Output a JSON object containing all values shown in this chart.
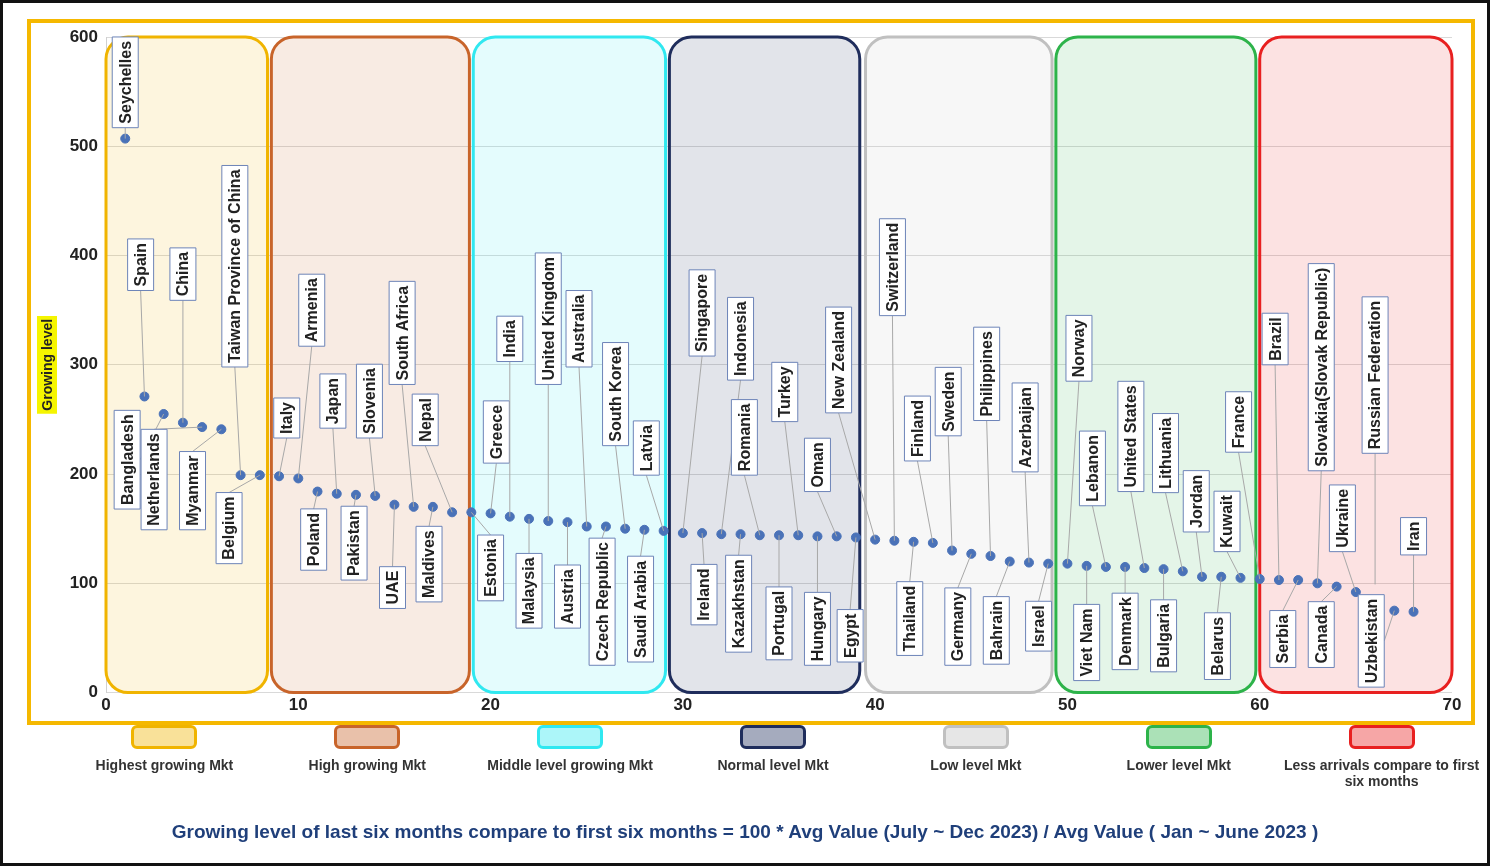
{
  "chart_data": {
    "type": "scatter",
    "ylabel": "Growing level",
    "x": [
      1,
      2,
      3,
      4,
      5,
      6,
      7,
      8,
      9,
      10,
      11,
      12,
      13,
      14,
      15,
      16,
      17,
      18,
      19,
      20,
      21,
      22,
      23,
      24,
      25,
      26,
      27,
      28,
      29,
      30,
      31,
      32,
      33,
      34,
      35,
      36,
      37,
      38,
      39,
      40,
      41,
      42,
      43,
      44,
      45,
      46,
      47,
      48,
      49,
      50,
      51,
      52,
      53,
      54,
      55,
      56,
      57,
      58,
      59,
      60,
      61,
      62,
      63,
      64,
      65,
      66,
      67,
      68
    ],
    "series": [
      {
        "color": "#4a72b8",
        "values": [
          507,
          271,
          255,
          247,
          243,
          241,
          199,
          199,
          198,
          196,
          184,
          182,
          181,
          180,
          172,
          170,
          170,
          165,
          165,
          164,
          161,
          159,
          157,
          156,
          152,
          152,
          150,
          149,
          148,
          146,
          146,
          145,
          145,
          144,
          144,
          144,
          143,
          143,
          142,
          140,
          139,
          138,
          137,
          130,
          127,
          125,
          120,
          119,
          118,
          118,
          116,
          115,
          115,
          114,
          113,
          111,
          106,
          106,
          105,
          104,
          103,
          103,
          100,
          97,
          92,
          null,
          75,
          74
        ]
      }
    ],
    "xlim": [
      0,
      70
    ],
    "xticks": [
      0,
      10,
      20,
      30,
      40,
      50,
      60,
      70
    ],
    "ylim": [
      0,
      600
    ],
    "yticks": [
      0,
      100,
      200,
      300,
      400,
      500,
      600
    ],
    "grid": "y",
    "marker": "circle",
    "legend": "bottom",
    "bands": [
      {
        "axis": "x",
        "from": 0,
        "to": 8.4,
        "label": "Highest growing Mkt",
        "color": "#f0b400"
      },
      {
        "axis": "x",
        "from": 8.6,
        "to": 18.9,
        "label": "High growing Mkt",
        "color": "#c8642a"
      },
      {
        "axis": "x",
        "from": 19.1,
        "to": 29.1,
        "label": "Middle level growing Mkt",
        "color": "#30e8f0"
      },
      {
        "axis": "x",
        "from": 29.3,
        "to": 39.2,
        "label": "Normal level Mkt",
        "color": "#1f2d5c"
      },
      {
        "axis": "x",
        "from": 39.5,
        "to": 49.2,
        "label": "Low level Mkt",
        "color": "#c0c0c0"
      },
      {
        "axis": "x",
        "from": 49.4,
        "to": 59.8,
        "label": "Lower level Mkt",
        "color": "#2db34a"
      },
      {
        "axis": "x",
        "from": 60,
        "to": 70,
        "label": "Less arrivals compare to first six months",
        "color": "#e82020"
      }
    ],
    "annotations": [
      {
        "text": "Seychelles",
        "x": 1,
        "y": 507
      },
      {
        "text": "Spain",
        "x": 2,
        "y": 271
      },
      {
        "text": "Bangladesh",
        "x": 3,
        "y": 255
      },
      {
        "text": "China",
        "x": 4,
        "y": 247
      },
      {
        "text": "Netherlands",
        "x": 5,
        "y": 243
      },
      {
        "text": "Myanmar",
        "x": 6,
        "y": 241
      },
      {
        "text": "Taiwan Province of China",
        "x": 7,
        "y": 199
      },
      {
        "text": "Belgium",
        "x": 8,
        "y": 199
      },
      {
        "text": "Italy",
        "x": 9,
        "y": 198
      },
      {
        "text": "Armenia",
        "x": 10,
        "y": 196
      },
      {
        "text": "Poland",
        "x": 11,
        "y": 184
      },
      {
        "text": "Japan",
        "x": 12,
        "y": 182
      },
      {
        "text": "Pakistan",
        "x": 13,
        "y": 181
      },
      {
        "text": "Slovenia",
        "x": 14,
        "y": 180
      },
      {
        "text": "UAE",
        "x": 15,
        "y": 172
      },
      {
        "text": "South Africa",
        "x": 16,
        "y": 170
      },
      {
        "text": "Maldives",
        "x": 17,
        "y": 170
      },
      {
        "text": "Nepal",
        "x": 18,
        "y": 165
      },
      {
        "text": "Estonia",
        "x": 19,
        "y": 165
      },
      {
        "text": "Greece",
        "x": 20,
        "y": 164
      },
      {
        "text": "India",
        "x": 21,
        "y": 161
      },
      {
        "text": "Malaysia",
        "x": 22,
        "y": 159
      },
      {
        "text": "United Kingdom",
        "x": 23,
        "y": 157
      },
      {
        "text": "Austria",
        "x": 24,
        "y": 156
      },
      {
        "text": "Australia",
        "x": 25,
        "y": 152
      },
      {
        "text": "Czech Republic",
        "x": 26,
        "y": 152
      },
      {
        "text": "South Korea",
        "x": 27,
        "y": 150
      },
      {
        "text": "Saudi Arabia",
        "x": 28,
        "y": 149
      },
      {
        "text": "Latvia",
        "x": 29,
        "y": 148
      },
      {
        "text": "Singapore",
        "x": 30,
        "y": 146
      },
      {
        "text": "Ireland",
        "x": 31,
        "y": 146
      },
      {
        "text": "Indonesia",
        "x": 32,
        "y": 145
      },
      {
        "text": "Kazakhstan",
        "x": 33,
        "y": 145
      },
      {
        "text": "Romania",
        "x": 34,
        "y": 144
      },
      {
        "text": "Portugal",
        "x": 35,
        "y": 144
      },
      {
        "text": "Turkey",
        "x": 36,
        "y": 144
      },
      {
        "text": "Hungary",
        "x": 37,
        "y": 143
      },
      {
        "text": "Oman",
        "x": 38,
        "y": 143
      },
      {
        "text": "Egypt",
        "x": 39,
        "y": 142
      },
      {
        "text": "New Zealand",
        "x": 40,
        "y": 140
      },
      {
        "text": "Switzerland",
        "x": 41,
        "y": 139
      },
      {
        "text": "Thailand",
        "x": 42,
        "y": 138
      },
      {
        "text": "Finland",
        "x": 43,
        "y": 137
      },
      {
        "text": "Sweden",
        "x": 44,
        "y": 130
      },
      {
        "text": "Germany",
        "x": 45,
        "y": 127
      },
      {
        "text": "Philippines",
        "x": 46,
        "y": 125
      },
      {
        "text": "Bahrain",
        "x": 47,
        "y": 120
      },
      {
        "text": "Azerbaijan",
        "x": 48,
        "y": 119
      },
      {
        "text": "Israel",
        "x": 49,
        "y": 118
      },
      {
        "text": "Norway",
        "x": 50,
        "y": 118
      },
      {
        "text": "Viet Nam",
        "x": 51,
        "y": 116
      },
      {
        "text": "Lebanon",
        "x": 52,
        "y": 115
      },
      {
        "text": "Denmark",
        "x": 53,
        "y": 115
      },
      {
        "text": "United States",
        "x": 54,
        "y": 114
      },
      {
        "text": "Bulgaria",
        "x": 55,
        "y": 113
      },
      {
        "text": "Lithuania",
        "x": 56,
        "y": 111
      },
      {
        "text": "Jordan",
        "x": 57,
        "y": 106
      },
      {
        "text": "Belarus",
        "x": 58,
        "y": 106
      },
      {
        "text": "Kuwait",
        "x": 59,
        "y": 105
      },
      {
        "text": "France",
        "x": 60,
        "y": 104
      },
      {
        "text": "Brazil",
        "x": 61,
        "y": 103
      },
      {
        "text": "Serbia",
        "x": 62,
        "y": 103
      },
      {
        "text": "Slovakia(Slovak Republic)",
        "x": 63,
        "y": 100
      },
      {
        "text": "Canada",
        "x": 64,
        "y": 97
      },
      {
        "text": "Ukraine",
        "x": 65,
        "y": 92
      },
      "Russian Federation",
      {
        "text": "Uzbekistan",
        "x": 67,
        "y": 75
      },
      {
        "text": "Iran",
        "x": 68,
        "y": 74
      },
      "Growing level of last six months compare to first six months = 100 * Avg Value (July ~ Dec 2023) / Avg Value ( Jan ~ June 2023 )"
    ]
  }
}
